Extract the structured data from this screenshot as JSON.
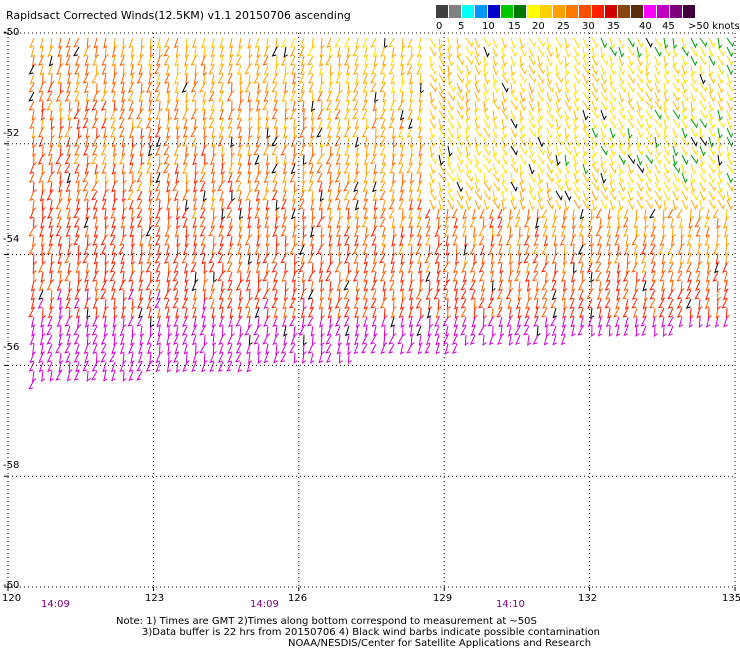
{
  "title": "Rapidsact Corrected Winds(12.5KM) v1.1 20150706 ascending",
  "colorbar": {
    "labels": [
      "0",
      "5",
      "10",
      "15",
      "20",
      "25",
      "30",
      "35",
      "40",
      "45",
      ">50 knots"
    ],
    "colors": [
      "#404040",
      "#808080",
      "#00ffff",
      "#0096ff",
      "#0000c8",
      "#00c800",
      "#007800",
      "#ffff00",
      "#ffd000",
      "#ffa000",
      "#ff7800",
      "#ff5000",
      "#ff2000",
      "#d00000",
      "#8b4513",
      "#5a2d0c",
      "#ff00ff",
      "#c000c0",
      "#800080",
      "#400040"
    ]
  },
  "map": {
    "lon_min": 120,
    "lon_max": 135,
    "lat_top": -50,
    "lat_bottom": -60,
    "lat_ticks": [
      "-50",
      "-52",
      "-54",
      "-56",
      "-58",
      "-60"
    ],
    "lon_ticks": [
      "120",
      "123",
      "126",
      "129",
      "132",
      "135"
    ],
    "grid": "dotted",
    "times": [
      "14:09",
      "14:09",
      "14:10"
    ]
  },
  "notes": {
    "line1": "Note: 1) Times are GMT 2)Times along bottom correspond to measurement at ~50S",
    "line2": "3)Data buffer is 22 hrs from 20150706 4) Black wind barbs indicate possible contamination",
    "line3": "NOAA/NESDIS/Center for Satellite Applications and Research"
  }
}
